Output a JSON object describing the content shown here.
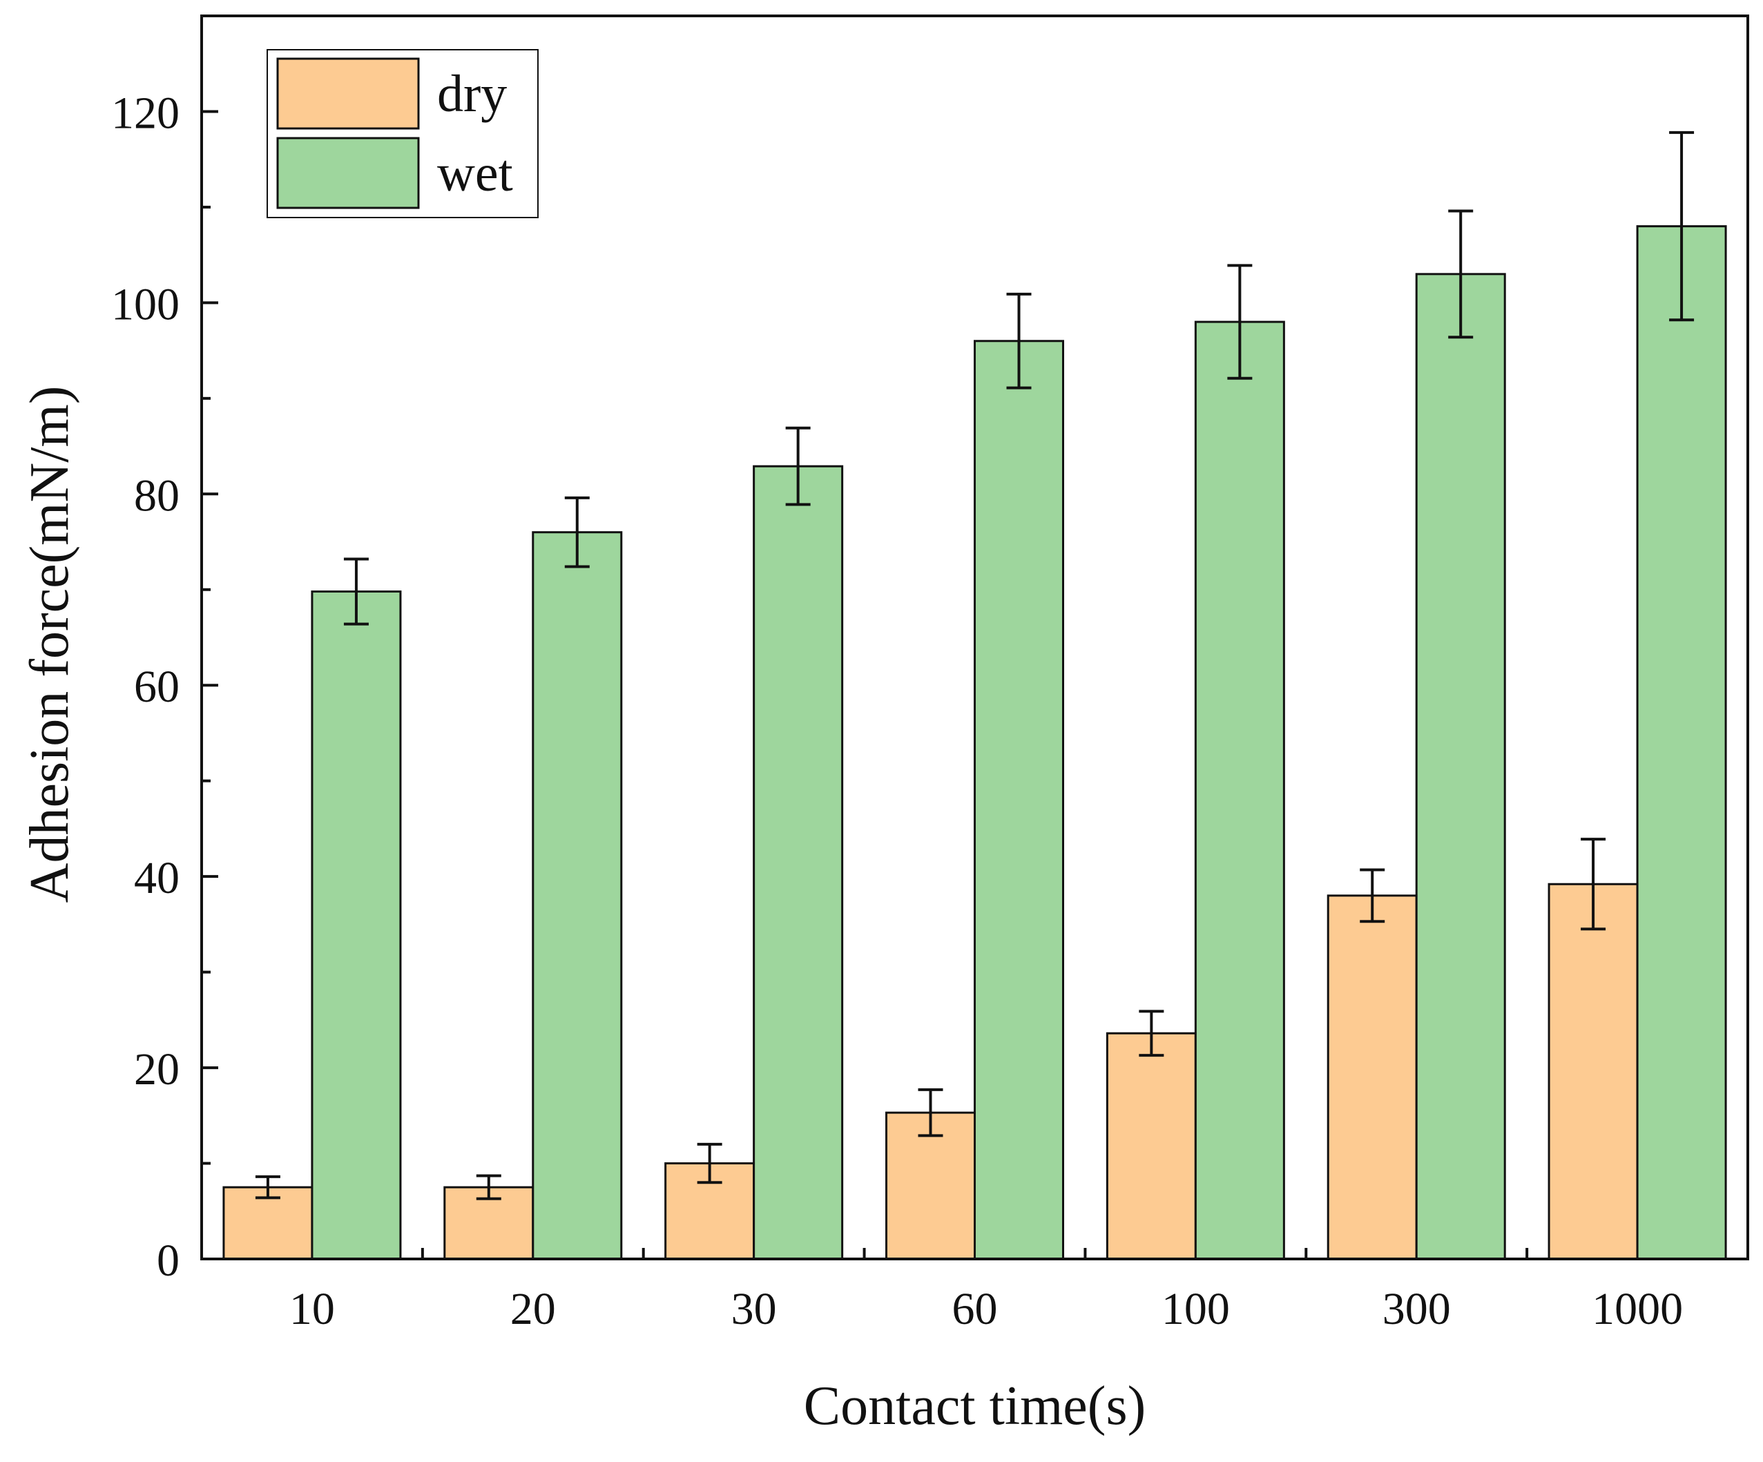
{
  "chart_data": {
    "type": "bar",
    "title": "",
    "xlabel": "Contact time(s)",
    "ylabel": "Adhesion force(mN/m)",
    "categories": [
      "10",
      "20",
      "30",
      "60",
      "100",
      "300",
      "1000"
    ],
    "series": [
      {
        "name": "dry",
        "color": "#FDCB92",
        "values": [
          7.5,
          7.5,
          10,
          15.3,
          23.6,
          38,
          39.2
        ],
        "errors": [
          1.1,
          1.2,
          2.0,
          2.4,
          2.3,
          2.7,
          4.7
        ]
      },
      {
        "name": "wet",
        "color": "#9ED69D",
        "values": [
          69.8,
          76,
          82.9,
          96,
          98,
          103,
          108
        ],
        "errors": [
          3.4,
          3.6,
          4.0,
          4.9,
          5.9,
          6.6,
          9.8
        ]
      }
    ],
    "ylim": [
      0,
      130
    ],
    "yticks": [
      0,
      20,
      40,
      60,
      80,
      100,
      120
    ],
    "grid": false,
    "legend_position": "top-left"
  }
}
